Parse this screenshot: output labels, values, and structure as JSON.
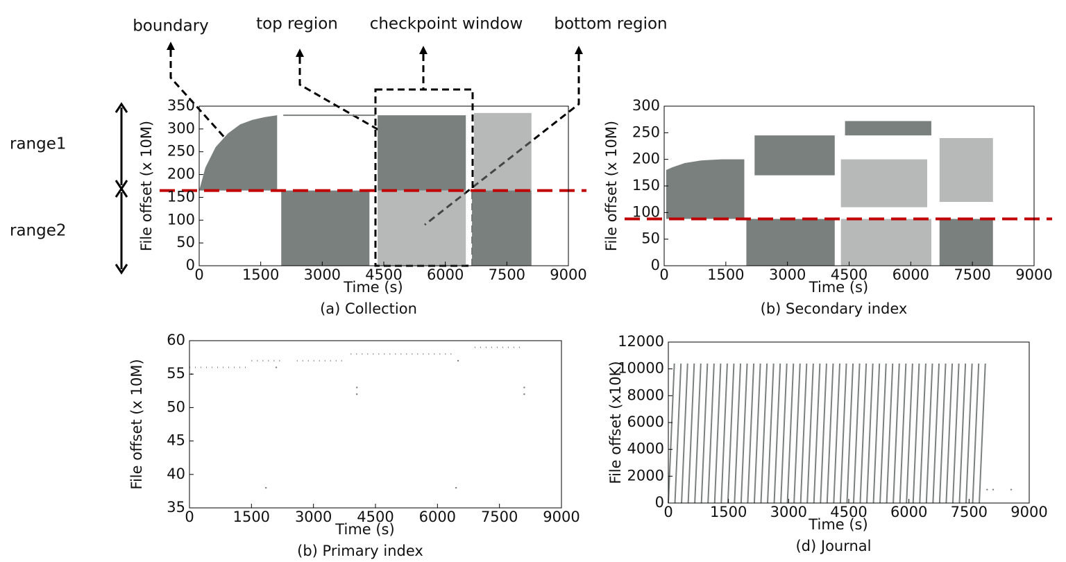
{
  "annotations": [
    "boundary",
    "top region",
    "checkpoint window",
    "bottom region",
    "range1",
    "range2"
  ],
  "chart_data": [
    {
      "type": "scatter",
      "caption": "(a) Collection",
      "xlabel": "Time (s)",
      "ylabel": "File offset (x 10M)",
      "xlim": [
        0,
        9000
      ],
      "ylim": [
        0,
        350
      ],
      "xticks": [
        0,
        1500,
        3000,
        4500,
        6000,
        7500,
        9000
      ],
      "yticks": [
        0,
        50,
        100,
        150,
        200,
        250,
        300,
        350
      ],
      "color": "#7a807e",
      "threshold": 165,
      "threshold_color": "#c00000",
      "area": {
        "x": [
          0,
          150,
          400,
          700,
          1000,
          1300,
          1600,
          1900
        ],
        "values": [
          165,
          215,
          260,
          290,
          310,
          320,
          326,
          330
        ],
        "base": 165
      },
      "blocks": [
        {
          "x": [
            2000,
            4150
          ],
          "y": [
            0,
            165
          ],
          "sparse": false
        },
        {
          "x": [
            4350,
            6500
          ],
          "y": [
            165,
            330
          ],
          "sparse": false
        },
        {
          "x": [
            4350,
            6500
          ],
          "y": [
            0,
            165
          ],
          "sparse": true
        },
        {
          "x": [
            6650,
            8100
          ],
          "y": [
            0,
            165
          ],
          "sparse": false
        },
        {
          "x": [
            6700,
            8100
          ],
          "y": [
            165,
            335
          ],
          "sparse": true
        }
      ],
      "segments": [
        {
          "x": [
            2050,
            4300
          ],
          "y": 330
        }
      ]
    },
    {
      "type": "scatter",
      "caption": "(b) Secondary index",
      "xlabel": "Time (s)",
      "ylabel": "File offset (x 10M)",
      "xlim": [
        0,
        9000
      ],
      "ylim": [
        0,
        300
      ],
      "xticks": [
        0,
        1500,
        3000,
        4500,
        6000,
        7500,
        9000
      ],
      "yticks": [
        0,
        50,
        100,
        150,
        200,
        250,
        300
      ],
      "color": "#7a807e",
      "threshold": 88,
      "threshold_color": "#c00000",
      "area": {
        "x": [
          50,
          200,
          500,
          900,
          1400,
          1950
        ],
        "values": [
          180,
          185,
          193,
          198,
          200,
          200
        ],
        "base": 88
      },
      "blocks": [
        {
          "x": [
            2000,
            4150
          ],
          "y": [
            0,
            88
          ],
          "sparse": false
        },
        {
          "x": [
            2200,
            4150
          ],
          "y": [
            170,
            245
          ],
          "sparse": false
        },
        {
          "x": [
            4300,
            6500
          ],
          "y": [
            0,
            88
          ],
          "sparse": true
        },
        {
          "x": [
            4400,
            6500
          ],
          "y": [
            245,
            272
          ],
          "sparse": false
        },
        {
          "x": [
            4300,
            6400
          ],
          "y": [
            110,
            200
          ],
          "sparse": true
        },
        {
          "x": [
            6700,
            8000
          ],
          "y": [
            0,
            88
          ],
          "sparse": false
        },
        {
          "x": [
            6700,
            8000
          ],
          "y": [
            120,
            240
          ],
          "sparse": true
        }
      ],
      "segments": []
    },
    {
      "type": "scatter",
      "caption": "(b) Primary index",
      "xlabel": "Time (s)",
      "ylabel": "File offset (x 10M)",
      "xlim": [
        0,
        9000
      ],
      "ylim": [
        35,
        60
      ],
      "xticks": [
        0,
        1500,
        3000,
        4500,
        6000,
        7500,
        9000
      ],
      "yticks": [
        35,
        40,
        45,
        50,
        55,
        60
      ],
      "color": "#7a807e",
      "segments": [
        {
          "x": [
            0,
            1400
          ],
          "y": 56
        },
        {
          "x": [
            1500,
            2300
          ],
          "y": 57
        },
        {
          "x": [
            2600,
            3700
          ],
          "y": 57
        },
        {
          "x": [
            3900,
            6400
          ],
          "y": 58
        },
        {
          "x": [
            6900,
            8100
          ],
          "y": 59
        }
      ],
      "points": {
        "x": [
          50,
          1850,
          2100,
          4050,
          4050,
          6450,
          6500,
          8100,
          8100
        ],
        "y": [
          55,
          38,
          56,
          52,
          53,
          38,
          57,
          52,
          53
        ]
      }
    },
    {
      "type": "line",
      "caption": "(d) Journal",
      "xlabel": "Time (s)",
      "ylabel": "File offset (x10K)",
      "xlim": [
        0,
        9000
      ],
      "ylim": [
        0,
        12000
      ],
      "xticks": [
        0,
        1500,
        3000,
        4500,
        6000,
        7500,
        9000
      ],
      "yticks": [
        0,
        2000,
        4000,
        6000,
        8000,
        10000,
        12000
      ],
      "color": "#7a807e",
      "teeth": {
        "start": [
          0,
          165,
          330,
          495,
          660,
          825,
          990,
          1155,
          1320,
          1485,
          1650,
          1815,
          1980,
          2145,
          2310,
          2475,
          2640,
          2805,
          2970,
          3135,
          3300,
          3465,
          3630,
          3795,
          3960,
          4125,
          4290,
          4455,
          4620,
          4785,
          4950,
          5115,
          5280,
          5445,
          5610,
          5775,
          5940,
          6105,
          6270,
          6435,
          6600,
          6765,
          6930,
          7095,
          7260,
          7425,
          7590,
          7755
        ],
        "rise": 150,
        "low": 0,
        "high": 10400
      },
      "points": {
        "x": [
          7950,
          8100,
          8550
        ],
        "y": [
          1000,
          1000,
          1000
        ]
      }
    }
  ]
}
